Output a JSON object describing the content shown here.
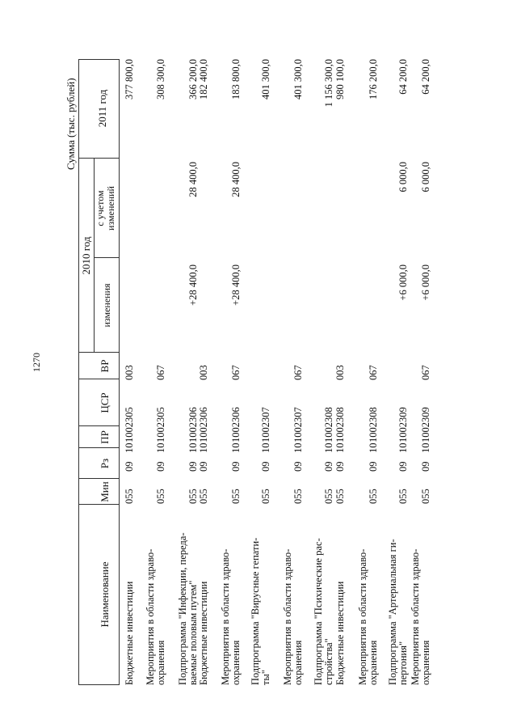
{
  "page_number": "1270",
  "units_caption": "Сумма (тыс. рублей)",
  "header": {
    "name": "Наименование",
    "min": "Мин",
    "rz": "Рз",
    "pr": "ПР",
    "csr": "ЦСР",
    "vr": "ВР",
    "year2010": "2010 год",
    "changes": "изменения",
    "with_changes_1": "с учетом",
    "with_changes_2": "изменений",
    "year2011": "2011 год"
  },
  "rows": [
    {
      "name": [
        "Бюджетные инвестиции"
      ],
      "min": "055",
      "rz": "09",
      "pr": "10",
      "csr": "1002305",
      "vr": "003",
      "change": "",
      "with_changes": "",
      "y2011": "377 800,0"
    },
    {
      "name": [
        "Мероприятия в области здраво-",
        "охранения"
      ],
      "min": "055",
      "rz": "09",
      "pr": "10",
      "csr": "1002305",
      "vr": "067",
      "change": "",
      "with_changes": "",
      "y2011": "308 300,0"
    },
    {
      "name": [
        "Подпрограмма \"Инфекции, переда-",
        "ваемые половым путем\""
      ],
      "min": "055",
      "rz": "09",
      "pr": "10",
      "csr": "1002306",
      "vr": "",
      "change": "+28 400,0",
      "with_changes": "28 400,0",
      "y2011": "366 200,0"
    },
    {
      "name": [
        "Бюджетные инвестиции"
      ],
      "min": "055",
      "rz": "09",
      "pr": "10",
      "csr": "1002306",
      "vr": "003",
      "change": "",
      "with_changes": "",
      "y2011": "182 400,0"
    },
    {
      "name": [
        "Мероприятия в области здраво-",
        "охранения"
      ],
      "min": "055",
      "rz": "09",
      "pr": "10",
      "csr": "1002306",
      "vr": "067",
      "change": "+28 400,0",
      "with_changes": "28 400,0",
      "y2011": "183 800,0"
    },
    {
      "name": [
        "Подпрограмма \"Вирусные гепати-",
        "ты\""
      ],
      "min": "055",
      "rz": "09",
      "pr": "10",
      "csr": "1002307",
      "vr": "",
      "change": "",
      "with_changes": "",
      "y2011": "401 300,0"
    },
    {
      "name": [
        "Мероприятия в области здраво-",
        "охранения"
      ],
      "min": "055",
      "rz": "09",
      "pr": "10",
      "csr": "1002307",
      "vr": "067",
      "change": "",
      "with_changes": "",
      "y2011": "401 300,0"
    },
    {
      "name": [
        "Подпрограмма \"Психические рас-",
        "стройства\""
      ],
      "min": "055",
      "rz": "09",
      "pr": "10",
      "csr": "1002308",
      "vr": "",
      "change": "",
      "with_changes": "",
      "y2011": "1 156 300,0"
    },
    {
      "name": [
        "Бюджетные инвестиции"
      ],
      "min": "055",
      "rz": "09",
      "pr": "10",
      "csr": "1002308",
      "vr": "003",
      "change": "",
      "with_changes": "",
      "y2011": "980 100,0"
    },
    {
      "name": [
        "Мероприятия в области здраво-",
        "охранения"
      ],
      "min": "055",
      "rz": "09",
      "pr": "10",
      "csr": "1002308",
      "vr": "067",
      "change": "",
      "with_changes": "",
      "y2011": "176 200,0"
    },
    {
      "name": [
        "Подпрограмма \"Артериальная ги-",
        "пертония\""
      ],
      "min": "055",
      "rz": "09",
      "pr": "10",
      "csr": "1002309",
      "vr": "",
      "change": "+6 000,0",
      "with_changes": "6 000,0",
      "y2011": "64 200,0"
    },
    {
      "name": [
        "Мероприятия в области здраво-",
        "охранения"
      ],
      "min": "055",
      "rz": "09",
      "pr": "10",
      "csr": "1002309",
      "vr": "067",
      "change": "+6 000,0",
      "with_changes": "6 000,0",
      "y2011": "64 200,0"
    }
  ]
}
